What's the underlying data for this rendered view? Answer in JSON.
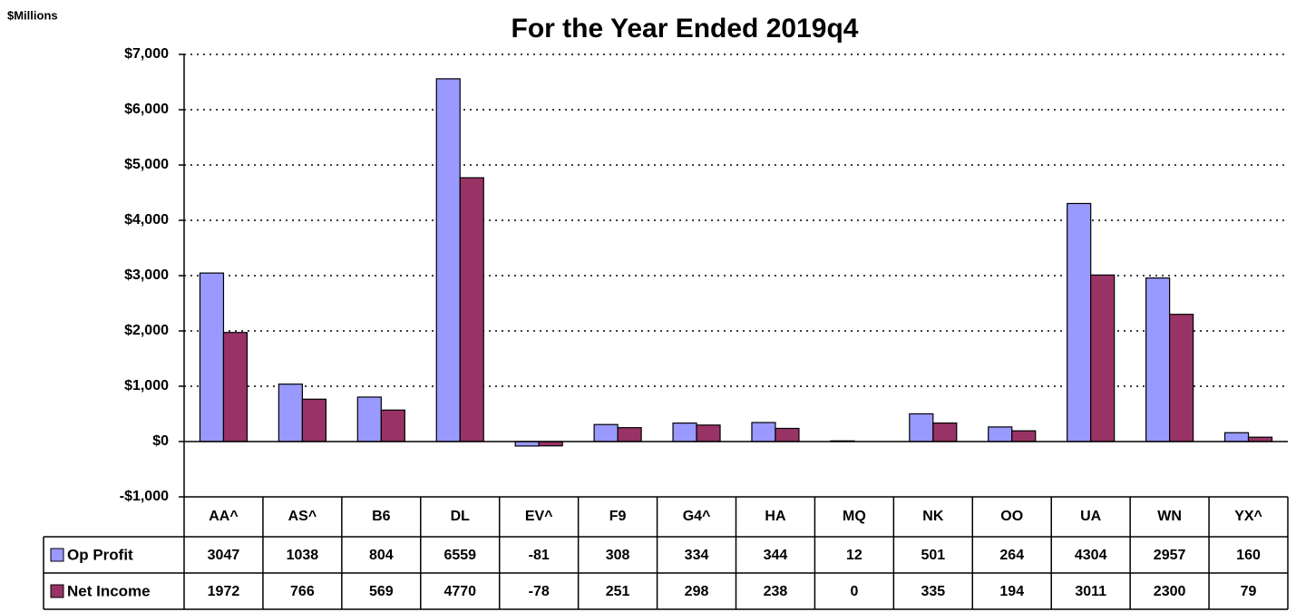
{
  "chart_data": {
    "type": "bar",
    "title": "For the Year Ended 2019q4",
    "y_axis_label": "$Millions",
    "categories": [
      "AA^",
      "AS^",
      "B6",
      "DL",
      "EV^",
      "F9",
      "G4^",
      "HA",
      "MQ",
      "NK",
      "OO",
      "UA",
      "WN",
      "YX^"
    ],
    "series": [
      {
        "name": "Op Profit",
        "color": "#9999ff",
        "values": [
          3047,
          1038,
          804,
          6559,
          -81,
          308,
          334,
          344,
          12,
          501,
          264,
          4304,
          2957,
          160
        ]
      },
      {
        "name": "Net Income",
        "color": "#993366",
        "values": [
          1972,
          766,
          569,
          4770,
          -78,
          251,
          298,
          238,
          0,
          335,
          194,
          3011,
          2300,
          79
        ]
      }
    ],
    "ylim": [
      -1000,
      7000
    ],
    "yticks": [
      {
        "value": -1000,
        "label": "-$1,000"
      },
      {
        "value": 0,
        "label": "$0"
      },
      {
        "value": 1000,
        "label": "$1,000"
      },
      {
        "value": 2000,
        "label": "$2,000"
      },
      {
        "value": 3000,
        "label": "$3,000"
      },
      {
        "value": 4000,
        "label": "$4,000"
      },
      {
        "value": 5000,
        "label": "$5,000"
      },
      {
        "value": 6000,
        "label": "$6,000"
      },
      {
        "value": 7000,
        "label": "$7,000"
      }
    ],
    "grid": true,
    "data_table": true
  }
}
